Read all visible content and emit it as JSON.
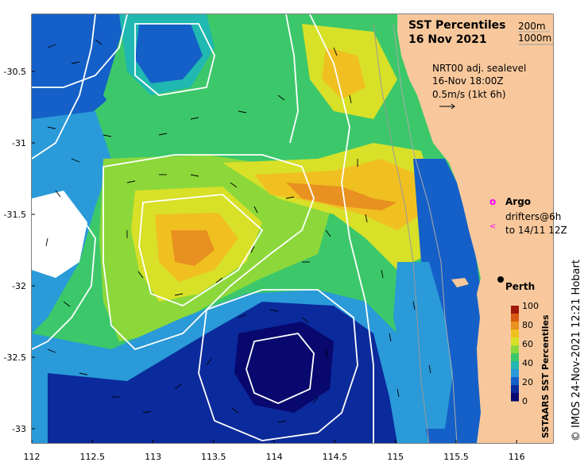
{
  "title": {
    "line1": "SST Percentiles",
    "line2": "16 Nov 2021"
  },
  "isobath_legend": [
    "200m",
    "1000m"
  ],
  "sealevel_info": {
    "line1": "NRT00 adj. sealevel",
    "line2": "16-Nov 18:00Z",
    "line3": "0.5m/s (1kt 6h)"
  },
  "argo_legend": {
    "symbol": "o",
    "label": "Argo",
    "color": "#ff00ff"
  },
  "drifters_legend": {
    "symbol": "<",
    "line1": "drifters@6h",
    "line2": "to 14/11 12Z",
    "color": "#ff00ff"
  },
  "city": {
    "name": "Perth",
    "lon": 115.86,
    "lat": -31.95
  },
  "colorbar": {
    "title": "SSTAARS SST Percentiles",
    "ticks": [
      "100",
      "80",
      "60",
      "40",
      "20",
      "0"
    ],
    "colors": [
      "#08086e",
      "#0b2a9c",
      "#1560c8",
      "#2a9ad8",
      "#20b8b0",
      "#3cc86a",
      "#8cd83a",
      "#d8e028",
      "#f0c020",
      "#e89020",
      "#d85a10",
      "#a01808"
    ]
  },
  "credit": "© IMOS 24-Nov-2021 12:21 Hobart",
  "axes": {
    "lon_range": [
      112,
      116.3
    ],
    "lat_range": [
      -33.1,
      -30.1
    ],
    "x_ticks": [
      "112",
      "112.5",
      "113",
      "113.5",
      "114",
      "114.5",
      "115",
      "115.5",
      "116"
    ],
    "y_ticks": [
      "-30.5",
      "-31",
      "-31.5",
      "-32",
      "-32.5",
      "-33"
    ]
  },
  "colors": {
    "land": "#f8c89c",
    "contour": "#ffffff",
    "isobath_200": "#aaaaaa",
    "isobath_1000": "#999999"
  }
}
